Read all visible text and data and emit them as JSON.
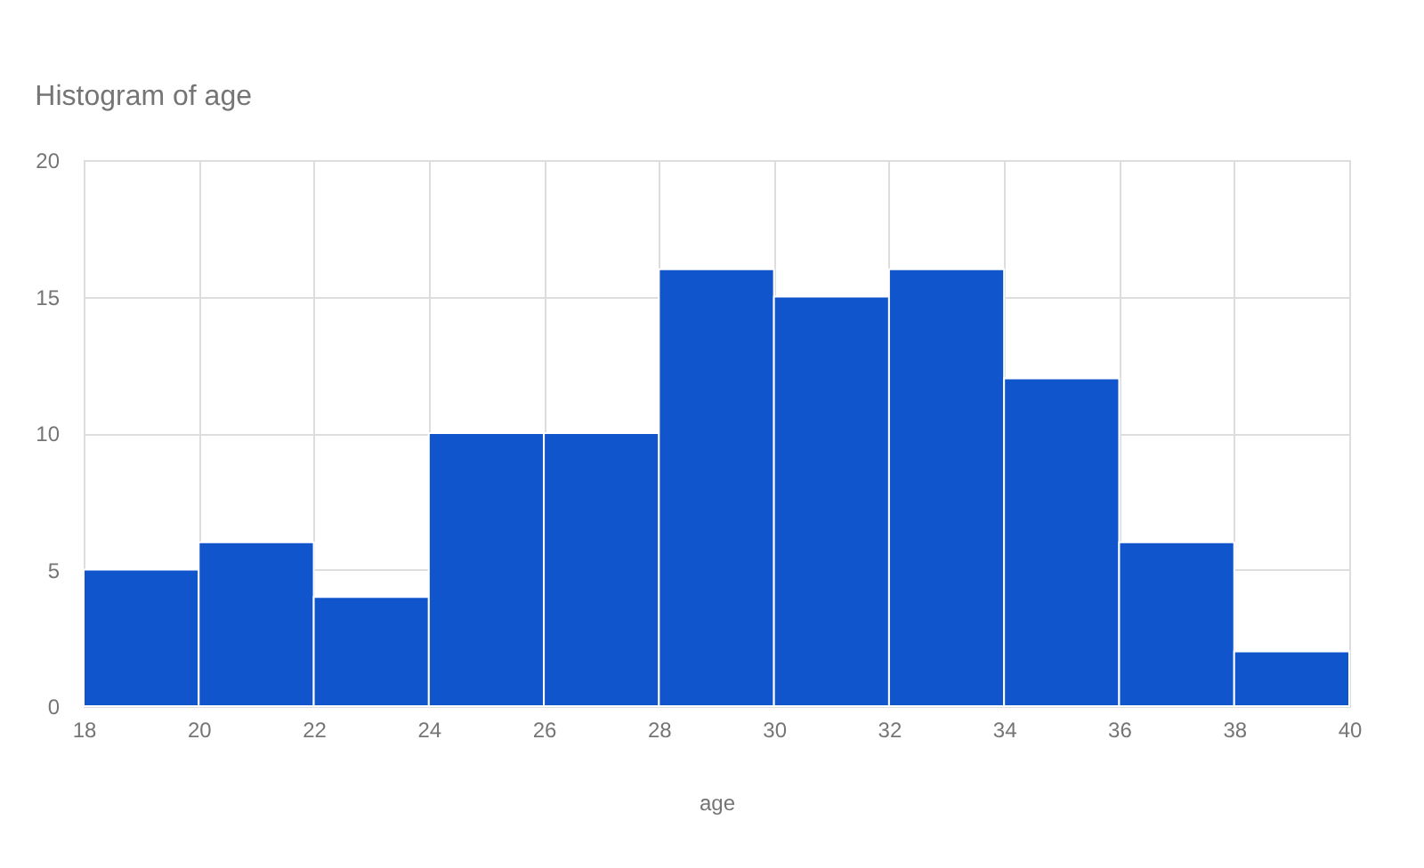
{
  "chart_data": {
    "type": "histogram",
    "title": "Histogram of age",
    "xlabel": "age",
    "bins": [
      18,
      20,
      22,
      24,
      26,
      28,
      30,
      32,
      34,
      36,
      38,
      40
    ],
    "values": [
      5,
      6,
      4,
      10,
      10,
      16,
      15,
      16,
      12,
      6,
      2
    ],
    "color": "#1155cc",
    "xlim": [
      18,
      40
    ],
    "xticks": [
      18,
      20,
      22,
      24,
      26,
      28,
      30,
      32,
      34,
      36,
      38,
      40
    ],
    "ylim": [
      0,
      20
    ],
    "yticks": [
      0,
      5,
      10,
      15,
      20
    ],
    "grid": true
  }
}
